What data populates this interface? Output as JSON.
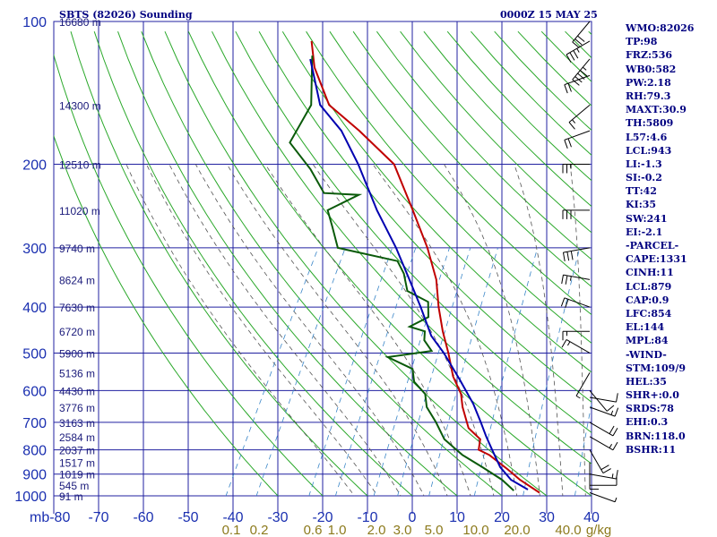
{
  "header": {
    "station": "SBTS (82026) Sounding",
    "time": "0000Z 15 MAY 25"
  },
  "indices": [
    "WMO:82026",
    "TP:98",
    "FRZ:536",
    "WB0:582",
    "PW:2.18",
    "RH:79.3",
    "MAXT:30.9",
    "TH:5809",
    "L57:4.6",
    "LCL:943",
    "LI:-1.3",
    "SI:-0.2",
    "TT:42",
    "KI:35",
    "SW:241",
    "EI:-2.1",
    "-PARCEL-",
    "CAPE:1331",
    "CINH:11",
    "LCL:879",
    "CAP:0.9",
    "LFC:854",
    "EL:144",
    "MPL:84",
    "-WIND-",
    "STM:109/9",
    "HEL:35",
    "SHR+:0.0",
    "SRDS:78",
    "EHI:0.3",
    "BRN:118.0",
    "BSHR:11"
  ],
  "colors": {
    "grid": "#2020a0",
    "dry_adiabat": "#2aa82a",
    "moist_adiabat": "#555555",
    "mixing_ratio": "#3a86c8",
    "temperature": "#c00000",
    "dewpoint": "#0a5a0a",
    "parcel": "#0000b0",
    "wind": "#000000"
  },
  "chart_data": {
    "type": "line",
    "title": "SBTS (82026) Sounding",
    "y_axis": {
      "label": "mb",
      "scale": "log",
      "range": [
        1000,
        100
      ],
      "ticks": [
        100,
        200,
        300,
        400,
        500,
        600,
        700,
        800,
        900,
        1000
      ]
    },
    "x_axis": {
      "label": "",
      "range": [
        -80,
        40
      ],
      "ticks": [
        -80,
        -70,
        -60,
        -50,
        -40,
        -30,
        -20,
        -10,
        0,
        10,
        20,
        30,
        40
      ]
    },
    "height_labels": [
      {
        "p": 100,
        "label": "16680 m"
      },
      {
        "p": 150,
        "label": "14300 m"
      },
      {
        "p": 200,
        "label": "12510 m"
      },
      {
        "p": 250,
        "label": "11020 m"
      },
      {
        "p": 300,
        "label": "9740 m"
      },
      {
        "p": 350,
        "label": "8624 m"
      },
      {
        "p": 400,
        "label": "7630 m"
      },
      {
        "p": 450,
        "label": "6720 m"
      },
      {
        "p": 500,
        "label": "5900 m"
      },
      {
        "p": 550,
        "label": "5136 m"
      },
      {
        "p": 600,
        "label": "4430 m"
      },
      {
        "p": 650,
        "label": "3776 m"
      },
      {
        "p": 700,
        "label": "3163 m"
      },
      {
        "p": 750,
        "label": "2584 m"
      },
      {
        "p": 800,
        "label": "2037 m"
      },
      {
        "p": 850,
        "label": "1517 m"
      },
      {
        "p": 900,
        "label": "1019 m"
      },
      {
        "p": 950,
        "label": "545 m"
      },
      {
        "p": 1000,
        "label": "91 m"
      }
    ],
    "mixing_ratio_labels": [
      "0.1",
      "0.2",
      "0.6",
      "1.0",
      "2.0",
      "3.0",
      "5.0",
      "10.0",
      "20.0",
      "40.0"
    ],
    "mixing_ratio_unit": "g/kg",
    "mixing_ratio_values": [
      0.1,
      0.2,
      0.6,
      1.0,
      2.0,
      3.0,
      5.0,
      10.0,
      20.0,
      40.0
    ],
    "series": [
      {
        "name": "Temperature",
        "points": [
          [
            28,
            985
          ],
          [
            22,
            925
          ],
          [
            18,
            880
          ],
          [
            12,
            820
          ],
          [
            9,
            800
          ],
          [
            8,
            760
          ],
          [
            4,
            720
          ],
          [
            0,
            650
          ],
          [
            -2,
            610
          ],
          [
            -6,
            560
          ],
          [
            -10,
            500
          ],
          [
            -14,
            450
          ],
          [
            -18,
            400
          ],
          [
            -22,
            350
          ],
          [
            -28,
            300
          ],
          [
            -36,
            250
          ],
          [
            -46,
            200
          ],
          [
            -58,
            170
          ],
          [
            -68,
            150
          ],
          [
            -76,
            125
          ],
          [
            -80,
            110
          ]
        ]
      },
      {
        "name": "Dewpoint",
        "points": [
          [
            22,
            975
          ],
          [
            18,
            925
          ],
          [
            12,
            870
          ],
          [
            6,
            820
          ],
          [
            0,
            760
          ],
          [
            -4,
            700
          ],
          [
            -8,
            650
          ],
          [
            -10,
            610
          ],
          [
            -14,
            575
          ],
          [
            -16,
            540
          ],
          [
            -23,
            510
          ],
          [
            -14,
            495
          ],
          [
            -17,
            470
          ],
          [
            -18,
            450
          ],
          [
            -22,
            440
          ],
          [
            -19,
            420
          ],
          [
            -21,
            390
          ],
          [
            -27,
            370
          ],
          [
            -30,
            340
          ],
          [
            -33,
            320
          ],
          [
            -48,
            300
          ],
          [
            -52,
            270
          ],
          [
            -55,
            250
          ],
          [
            -50,
            232
          ],
          [
            -58,
            230
          ],
          [
            -64,
            205
          ],
          [
            -72,
            180
          ],
          [
            -72,
            150
          ],
          [
            -78,
            118
          ]
        ]
      },
      {
        "name": "Parcel",
        "points": [
          [
            25,
            970
          ],
          [
            20,
            925
          ],
          [
            16,
            870
          ],
          [
            12,
            800
          ],
          [
            9,
            750
          ],
          [
            6,
            700
          ],
          [
            2,
            640
          ],
          [
            -4,
            570
          ],
          [
            -11,
            500
          ],
          [
            -16,
            460
          ],
          [
            -22,
            400
          ],
          [
            -28,
            350
          ],
          [
            -35,
            300
          ],
          [
            -44,
            250
          ],
          [
            -54,
            200
          ],
          [
            -62,
            170
          ],
          [
            -70,
            150
          ],
          [
            -78,
            120
          ]
        ]
      }
    ],
    "wind_barbs": [
      {
        "p": 985,
        "dir": 110,
        "spd": 5
      },
      {
        "p": 950,
        "dir": 90,
        "spd": 10
      },
      {
        "p": 900,
        "dir": 100,
        "spd": 15
      },
      {
        "p": 850,
        "dir": 180,
        "spd": 10
      },
      {
        "p": 800,
        "dir": 150,
        "spd": 20
      },
      {
        "p": 750,
        "dir": 120,
        "spd": 15
      },
      {
        "p": 700,
        "dir": 120,
        "spd": 20
      },
      {
        "p": 650,
        "dir": 110,
        "spd": 15
      },
      {
        "p": 620,
        "dir": 100,
        "spd": 10
      },
      {
        "p": 600,
        "dir": 140,
        "spd": 10
      },
      {
        "p": 550,
        "dir": 210,
        "spd": 5
      },
      {
        "p": 500,
        "dir": 300,
        "spd": 15
      },
      {
        "p": 450,
        "dir": 270,
        "spd": 15
      },
      {
        "p": 400,
        "dir": 290,
        "spd": 20
      },
      {
        "p": 350,
        "dir": 280,
        "spd": 25
      },
      {
        "p": 300,
        "dir": 260,
        "spd": 30
      },
      {
        "p": 250,
        "dir": 270,
        "spd": 30
      },
      {
        "p": 200,
        "dir": 270,
        "spd": 25
      },
      {
        "p": 170,
        "dir": 250,
        "spd": 20
      },
      {
        "p": 150,
        "dir": 230,
        "spd": 15
      },
      {
        "p": 130,
        "dir": 250,
        "spd": 20
      },
      {
        "p": 120,
        "dir": 220,
        "spd": 45
      },
      {
        "p": 110,
        "dir": 240,
        "spd": 35
      },
      {
        "p": 100,
        "dir": 220,
        "spd": 30
      }
    ]
  }
}
